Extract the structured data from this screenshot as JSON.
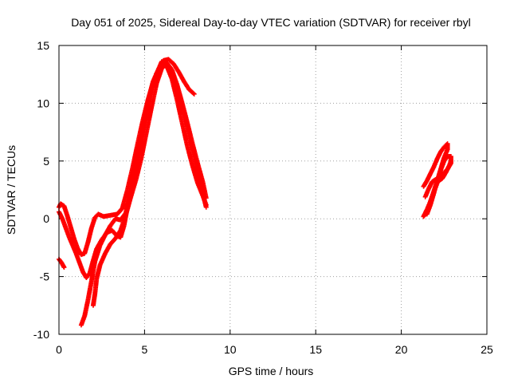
{
  "chart_data": {
    "type": "scatter",
    "title": "Day 051 of 2025, Sidereal Day-to-day VTEC variation (SDTVAR) for receiver rbyl",
    "xlabel": "GPS time / hours",
    "ylabel": "SDTVAR / TECUs",
    "xlim": [
      0,
      25
    ],
    "ylim": [
      -10,
      15
    ],
    "xticks": [
      0,
      5,
      10,
      15,
      20,
      25
    ],
    "yticks": [
      -10,
      -5,
      0,
      5,
      10,
      15
    ],
    "grid": true,
    "marker": "+",
    "series_color": "#ff0000",
    "series": [
      {
        "name": "trace-a",
        "points": [
          [
            0.0,
            -3.5
          ],
          [
            0.15,
            -3.8
          ],
          [
            0.3,
            -4.2
          ]
        ]
      },
      {
        "name": "trace-b",
        "points": [
          [
            0.0,
            1.0
          ],
          [
            0.1,
            1.3
          ],
          [
            0.3,
            1.1
          ],
          [
            0.5,
            0.2
          ],
          [
            0.7,
            -0.8
          ],
          [
            0.9,
            -1.8
          ],
          [
            1.1,
            -2.6
          ],
          [
            1.3,
            -3.1
          ],
          [
            1.5,
            -3.0
          ],
          [
            1.7,
            -2.0
          ],
          [
            1.9,
            -0.8
          ],
          [
            2.1,
            0.1
          ],
          [
            2.3,
            0.4
          ],
          [
            2.6,
            0.2
          ],
          [
            3.0,
            0.3
          ],
          [
            3.4,
            0.4
          ],
          [
            3.7,
            0.9
          ],
          [
            4.0,
            2.5
          ],
          [
            4.3,
            4.4
          ],
          [
            4.6,
            6.5
          ],
          [
            4.9,
            8.5
          ],
          [
            5.2,
            10.3
          ],
          [
            5.5,
            11.8
          ],
          [
            5.8,
            12.9
          ],
          [
            6.1,
            13.7
          ],
          [
            6.4,
            13.8
          ],
          [
            6.7,
            13.4
          ],
          [
            7.0,
            12.7
          ],
          [
            7.3,
            11.9
          ],
          [
            7.6,
            11.2
          ],
          [
            7.9,
            10.8
          ]
        ]
      },
      {
        "name": "trace-c",
        "points": [
          [
            0.0,
            0.6
          ],
          [
            0.2,
            0.0
          ],
          [
            0.4,
            -0.8
          ],
          [
            0.6,
            -1.6
          ],
          [
            0.8,
            -2.3
          ],
          [
            1.0,
            -3.0
          ],
          [
            1.2,
            -3.8
          ],
          [
            1.4,
            -4.6
          ],
          [
            1.6,
            -5.1
          ],
          [
            1.8,
            -4.7
          ],
          [
            2.0,
            -3.6
          ],
          [
            2.2,
            -2.6
          ],
          [
            2.5,
            -1.8
          ],
          [
            2.8,
            -1.2
          ],
          [
            3.1,
            -1.0
          ],
          [
            3.4,
            -1.5
          ],
          [
            3.6,
            -1.6
          ],
          [
            3.8,
            -0.6
          ],
          [
            4.0,
            1.0
          ],
          [
            4.3,
            3.0
          ],
          [
            4.6,
            5.5
          ],
          [
            4.9,
            7.9
          ],
          [
            5.2,
            10.2
          ],
          [
            5.5,
            11.9
          ],
          [
            5.8,
            12.9
          ],
          [
            6.0,
            13.6
          ],
          [
            6.3,
            13.4
          ],
          [
            6.6,
            12.5
          ],
          [
            6.9,
            11.2
          ],
          [
            7.2,
            9.7
          ],
          [
            7.5,
            8.0
          ],
          [
            7.8,
            6.0
          ],
          [
            8.1,
            4.0
          ],
          [
            8.4,
            2.2
          ],
          [
            8.6,
            1.0
          ]
        ]
      },
      {
        "name": "trace-d",
        "points": [
          [
            1.3,
            -9.2
          ],
          [
            1.5,
            -8.4
          ],
          [
            1.7,
            -7.0
          ],
          [
            1.9,
            -5.4
          ],
          [
            2.1,
            -3.7
          ],
          [
            2.4,
            -2.3
          ],
          [
            2.7,
            -1.4
          ],
          [
            3.0,
            -0.6
          ],
          [
            3.3,
            0.0
          ],
          [
            3.6,
            -0.1
          ],
          [
            3.9,
            0.5
          ],
          [
            4.2,
            2.3
          ],
          [
            4.5,
            4.5
          ],
          [
            4.8,
            6.8
          ],
          [
            5.1,
            9.0
          ],
          [
            5.4,
            11.2
          ],
          [
            5.7,
            12.6
          ],
          [
            6.0,
            13.3
          ],
          [
            6.3,
            13.2
          ],
          [
            6.6,
            12.1
          ],
          [
            6.9,
            10.3
          ],
          [
            7.2,
            8.3
          ],
          [
            7.5,
            6.3
          ],
          [
            7.8,
            4.6
          ],
          [
            8.1,
            3.1
          ],
          [
            8.4,
            2.0
          ],
          [
            8.6,
            1.2
          ]
        ]
      },
      {
        "name": "trace-e",
        "points": [
          [
            2.0,
            -7.5
          ],
          [
            2.1,
            -6.5
          ],
          [
            2.2,
            -5.2
          ],
          [
            2.4,
            -4.0
          ],
          [
            2.7,
            -3.0
          ],
          [
            3.0,
            -2.2
          ],
          [
            3.3,
            -1.7
          ],
          [
            3.6,
            -1.0
          ],
          [
            3.9,
            0.3
          ],
          [
            4.2,
            1.9
          ],
          [
            4.5,
            3.4
          ],
          [
            4.8,
            5.2
          ],
          [
            5.1,
            7.4
          ],
          [
            5.4,
            9.6
          ],
          [
            5.7,
            11.7
          ],
          [
            6.0,
            13.0
          ],
          [
            6.3,
            13.5
          ],
          [
            6.6,
            12.9
          ],
          [
            6.9,
            11.6
          ],
          [
            7.2,
            10.0
          ],
          [
            7.5,
            8.3
          ],
          [
            7.8,
            6.5
          ],
          [
            8.1,
            4.8
          ],
          [
            8.4,
            3.2
          ],
          [
            8.6,
            1.8
          ]
        ]
      },
      {
        "name": "trace-f",
        "points": [
          [
            21.3,
            0.2
          ],
          [
            21.5,
            0.6
          ],
          [
            21.7,
            1.5
          ],
          [
            21.9,
            2.3
          ],
          [
            22.1,
            3.1
          ],
          [
            22.3,
            3.6
          ],
          [
            22.5,
            4.0
          ],
          [
            22.7,
            4.3
          ],
          [
            22.9,
            4.8
          ],
          [
            22.9,
            5.4
          ],
          [
            22.7,
            5.4
          ],
          [
            22.5,
            5.0
          ],
          [
            22.3,
            4.2
          ],
          [
            22.1,
            3.3
          ],
          [
            21.9,
            2.4
          ],
          [
            21.7,
            1.5
          ],
          [
            21.5,
            0.8
          ],
          [
            21.3,
            0.2
          ]
        ]
      },
      {
        "name": "trace-g",
        "points": [
          [
            21.3,
            2.8
          ],
          [
            21.5,
            3.3
          ],
          [
            21.7,
            3.9
          ],
          [
            21.9,
            4.5
          ],
          [
            22.1,
            5.2
          ],
          [
            22.3,
            5.8
          ],
          [
            22.5,
            6.2
          ],
          [
            22.7,
            6.5
          ],
          [
            22.7,
            6.0
          ],
          [
            22.5,
            5.3
          ],
          [
            22.3,
            4.3
          ],
          [
            22.1,
            3.3
          ],
          [
            21.9,
            2.2
          ],
          [
            21.7,
            1.2
          ],
          [
            21.5,
            0.4
          ]
        ]
      },
      {
        "name": "trace-h",
        "points": [
          [
            21.4,
            1.9
          ],
          [
            21.6,
            2.6
          ],
          [
            21.8,
            3.2
          ],
          [
            22.0,
            3.4
          ],
          [
            22.2,
            3.3
          ],
          [
            22.4,
            3.5
          ],
          [
            22.6,
            4.0
          ],
          [
            22.8,
            4.6
          ],
          [
            22.9,
            5.0
          ]
        ]
      }
    ]
  }
}
